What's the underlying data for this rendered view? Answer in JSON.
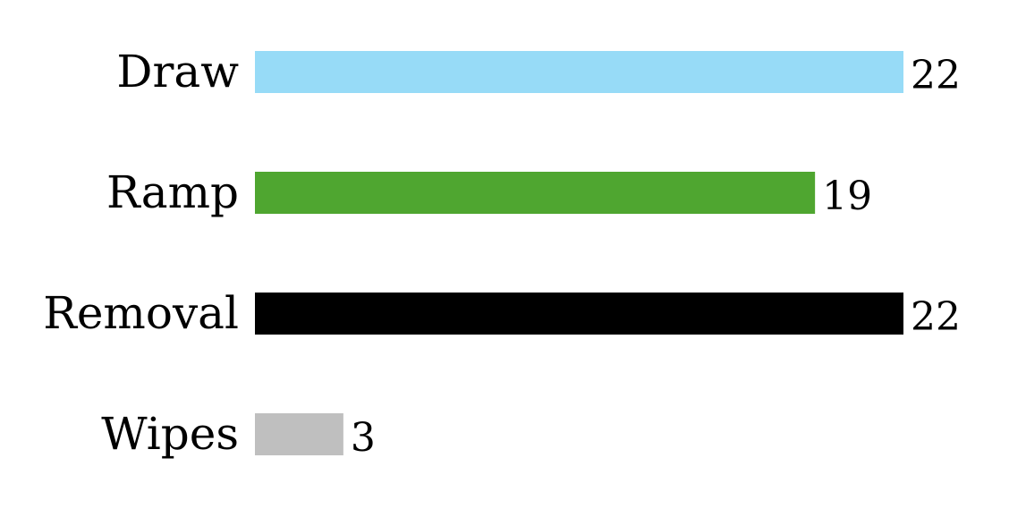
{
  "chart_data": {
    "type": "bar",
    "orientation": "horizontal",
    "title": "",
    "xlabel": "",
    "ylabel": "",
    "categories": [
      "Draw",
      "Ramp",
      "Removal",
      "Wipes"
    ],
    "values": [
      22,
      19,
      22,
      3
    ],
    "colors": [
      "#97DBF7",
      "#4FA630",
      "#000000",
      "#BFBFBF"
    ],
    "xlim": [
      0,
      22
    ],
    "grid": false,
    "data_labels": true
  }
}
